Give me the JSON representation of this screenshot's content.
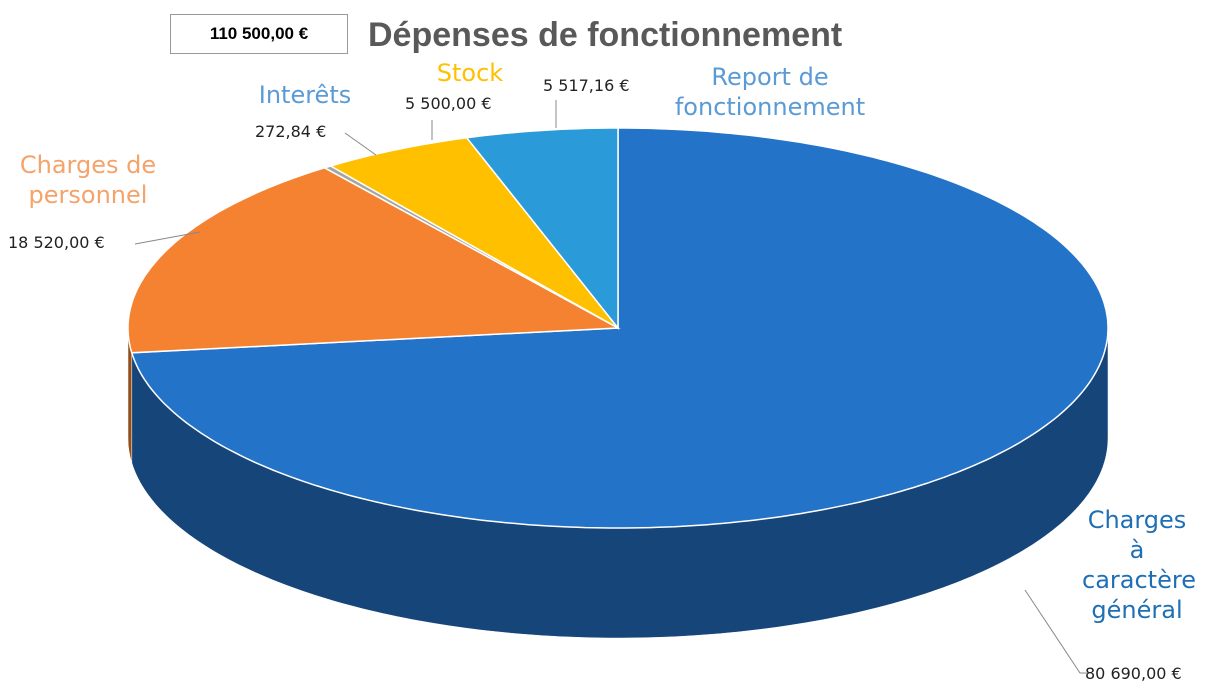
{
  "chart_data": {
    "type": "pie",
    "title": "Dépenses de fonctionnement",
    "total": "110 500,00 €",
    "categories": [
      "Charges à caractère général",
      "Charges de personnel",
      "Interêts",
      "Stock",
      "Report de fonctionnement"
    ],
    "values": [
      80690,
      18520,
      272.84,
      5500,
      5517.16
    ],
    "value_labels": [
      "80 690,00 €",
      "18 520,00 €",
      "272,84 €",
      "5 500,00 €",
      "5 517,16 €"
    ],
    "colors": [
      "#2373c9",
      "#f58231",
      "#a5a5a5",
      "#ffc000",
      "#2a9bd8"
    ],
    "label_colors": [
      "#1f6fb5",
      "#f4a36a",
      "#5b9bd5",
      "#ffc000",
      "#5b9bd5"
    ]
  }
}
